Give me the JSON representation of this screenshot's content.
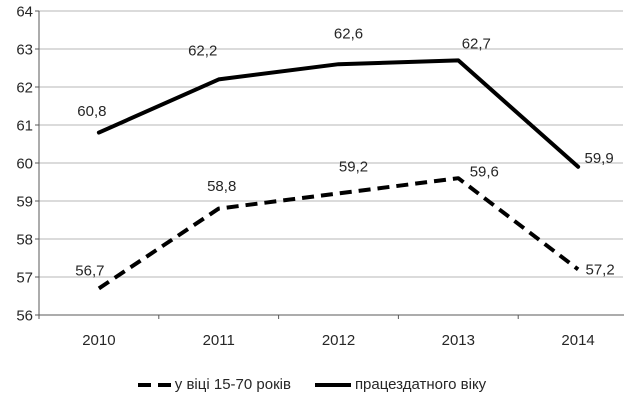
{
  "chart_data": {
    "type": "line",
    "categories": [
      "2010",
      "2011",
      "2012",
      "2013",
      "2014"
    ],
    "series": [
      {
        "name": "у віці 15-70 років",
        "style": "dashed",
        "values": [
          56.7,
          58.8,
          59.2,
          59.6,
          57.2
        ],
        "labels": [
          "56,7",
          "58,8",
          "59,2",
          "59,6",
          "57,2"
        ],
        "label_offsets": [
          [
            -9,
            -18
          ],
          [
            3,
            -23
          ],
          [
            15,
            -27
          ],
          [
            26,
            -7
          ],
          [
            22,
            0
          ]
        ]
      },
      {
        "name": "працездатного віку",
        "style": "solid",
        "values": [
          60.8,
          62.2,
          62.6,
          62.7,
          59.9
        ],
        "labels": [
          "60,8",
          "62,2",
          "62,6",
          "62,7",
          "59,9"
        ],
        "label_offsets": [
          [
            -7,
            -22
          ],
          [
            -16,
            -29
          ],
          [
            10,
            -31
          ],
          [
            18,
            -17
          ],
          [
            21,
            -9
          ]
        ]
      }
    ],
    "title": "",
    "xlabel": "",
    "ylabel": "",
    "ylim": [
      56,
      64
    ],
    "yticks": [
      56,
      57,
      58,
      59,
      60,
      61,
      62,
      63,
      64
    ],
    "grid": true,
    "legend_position": "bottom",
    "colors": {
      "line": "#000000",
      "grid": "#b7b7b7",
      "axis": "#595959",
      "text": "#262626"
    }
  }
}
